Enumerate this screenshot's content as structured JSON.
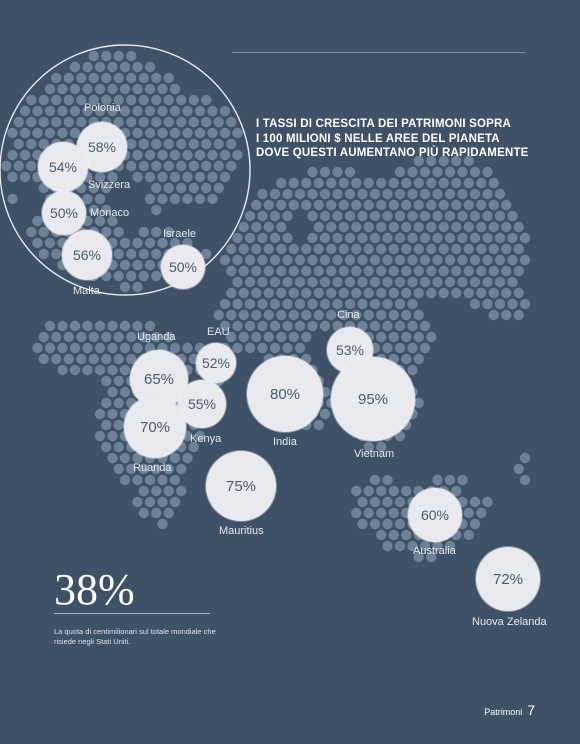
{
  "title_lines": [
    "I TASSI DI CRESCITA DEI PATRIMONI SOPRA",
    "I 100 MILIONI $ NELLE AREE DEL PIANETA",
    "DOVE QUESTI AUMENTANO PIÙ RAPIDAMENTE"
  ],
  "regions": [
    {
      "name": "Polonia",
      "value": "58%"
    },
    {
      "name": "Svizzera",
      "value": "54%"
    },
    {
      "name": "Monaco",
      "value": "50%"
    },
    {
      "name": "Malta",
      "value": "56%"
    },
    {
      "name": "Israele",
      "value": "50%"
    },
    {
      "name": "Uganda",
      "value": "65%"
    },
    {
      "name": "EAU",
      "value": "52%"
    },
    {
      "name": "Kenya",
      "value": "55%"
    },
    {
      "name": "Ruanda",
      "value": "70%"
    },
    {
      "name": "India",
      "value": "80%"
    },
    {
      "name": "Cina",
      "value": "53%"
    },
    {
      "name": "Vietnam",
      "value": "95%"
    },
    {
      "name": "Mauritius",
      "value": "75%"
    },
    {
      "name": "Australia",
      "value": "60%"
    },
    {
      "name": "Nuova Zelanda",
      "value": "72%"
    }
  ],
  "stat": {
    "value": "38%",
    "description": "La quota di centimilionari sul totale mondiale che risiede negli Stati Uniti."
  },
  "footer": {
    "section": "Patrimoni",
    "page_number": "7"
  },
  "colors": {
    "background": "#3f5166",
    "dot": "#6f8196",
    "bubble": "#e9eaef",
    "bubble_text": "#4a5a6d"
  }
}
